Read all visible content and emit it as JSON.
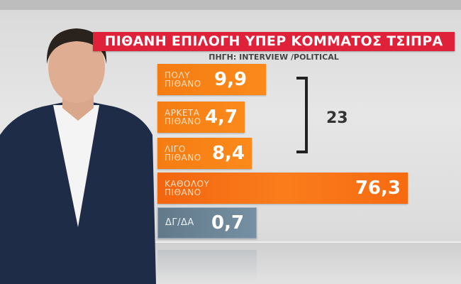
{
  "title": "ΠΙΘΑΝΗ ΕΠΙΛΟΓΗ ΥΠΕΡ ΚΟΜΜΑΤΟΣ ΤΣΙΠΡΑ",
  "source": "ΠΗΓΗ: INTERVIEW /POLITICAL",
  "chart_data": {
    "type": "bar",
    "title": "ΠΙΘΑΝΗ ΕΠΙΛΟΓΗ ΥΠΕΡ ΚΟΜΜΑΤΟΣ ΤΣΙΠΡΑ",
    "categories": [
      [
        "ΠΟΛΥ",
        "ΠΙΘΑΝΟ"
      ],
      [
        "ΑΡΚΕΤΑ",
        "ΠΙΘΑΝΟ"
      ],
      [
        "ΛΙΓΟ",
        "ΠΙΘΑΝΟ"
      ],
      [
        "ΚΑΘΟΛΟΥ",
        "ΠΙΘΑΝΟ"
      ],
      [
        "ΔΓ/ΔΑ",
        ""
      ]
    ],
    "values": [
      9.9,
      4.7,
      8.4,
      76.3,
      0.7
    ],
    "value_labels": [
      "9,9",
      "4,7",
      "8,4",
      "76,3",
      "0,7"
    ],
    "group_total_label": "23",
    "colors": {
      "orange": "#f57c12",
      "deep_orange": "#f3650f",
      "grey": "#6b8396",
      "title_red": "#e0213a"
    }
  }
}
